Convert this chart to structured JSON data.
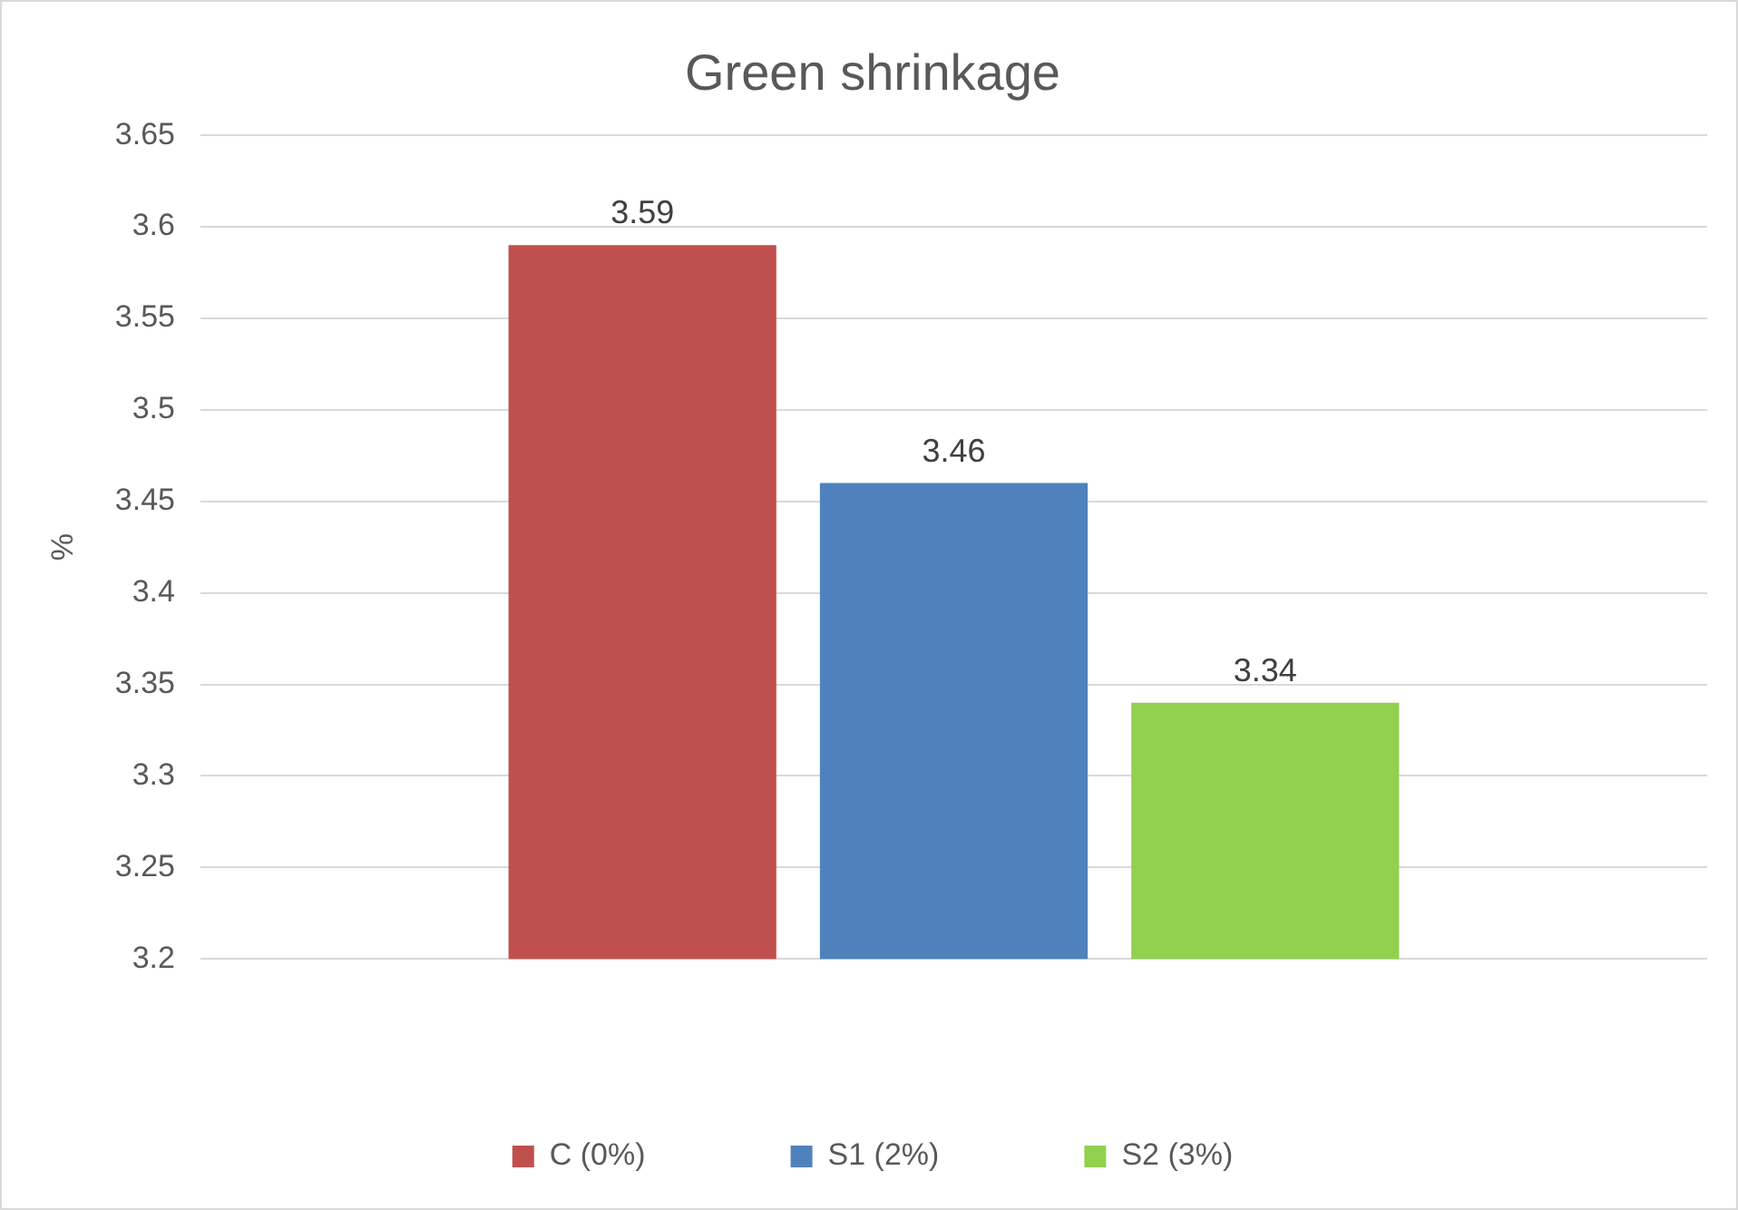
{
  "chart_data": {
    "type": "bar",
    "title": "Green shrinkage",
    "ylabel": "%",
    "categories": [
      null
    ],
    "series": [
      {
        "name": "C (0%)",
        "color": "#c0504d",
        "values": [
          3.59
        ]
      },
      {
        "name": "S1 (2%)",
        "color": "#4f81bd",
        "values": [
          3.46
        ]
      },
      {
        "name": "S2 (3%)",
        "color": "#92d050",
        "values": [
          3.34
        ]
      }
    ],
    "ylim": [
      3.2,
      3.65
    ],
    "yticks": [
      3.2,
      3.25,
      3.3,
      3.35,
      3.4,
      3.45,
      3.5,
      3.55,
      3.6,
      3.65
    ],
    "grid": "y",
    "legend": "bottom",
    "data_labels": true
  }
}
